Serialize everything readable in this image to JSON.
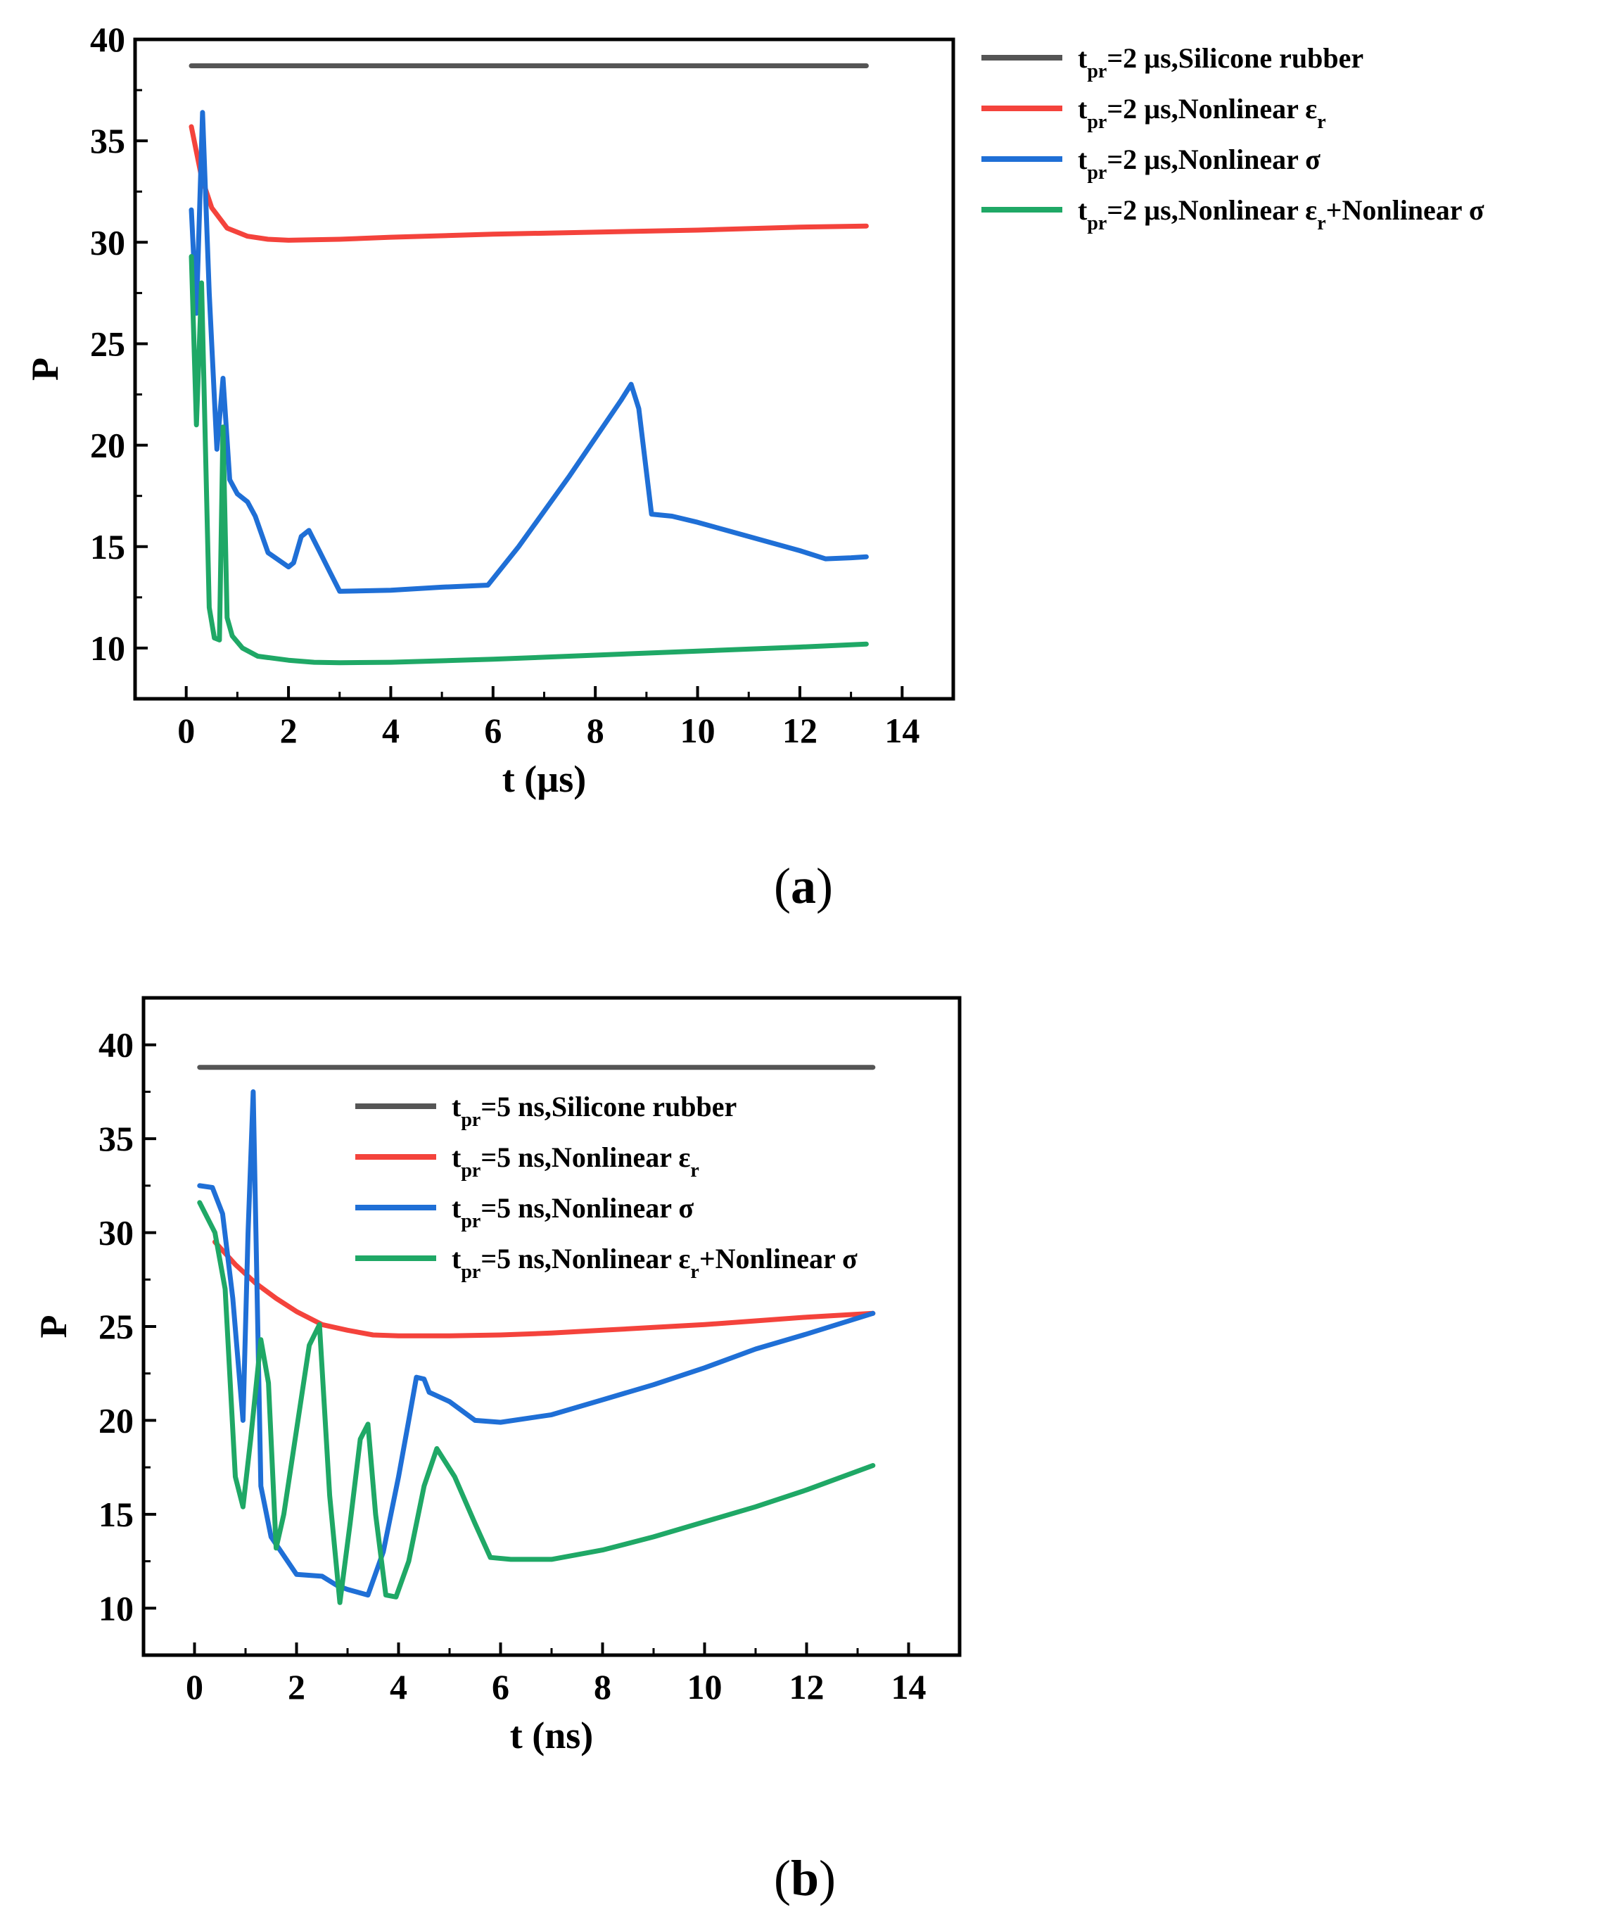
{
  "colors": {
    "black": "#555555",
    "red": "#f4433c",
    "blue": "#1f6fd6",
    "green": "#1fa866"
  },
  "chart_data": [
    {
      "id": "a",
      "panel_label": "(a)",
      "type": "line",
      "xlabel": "t (µs)",
      "ylabel": "P",
      "xlim": [
        -1,
        15
      ],
      "ylim": [
        7.5,
        40
      ],
      "xticks": [
        0,
        2,
        4,
        6,
        8,
        10,
        12,
        14
      ],
      "yticks": [
        10,
        15,
        20,
        25,
        30,
        35,
        40
      ],
      "legend_location": "outside-right",
      "series": [
        {
          "name_main": "t",
          "name_sub": "pr",
          "name_rest": "=2 µs,Silicone rubber",
          "name_extra": "",
          "name_extra_sub": "",
          "name_tail": "",
          "color": "black",
          "x": [
            0.1,
            13.3
          ],
          "y": [
            38.7,
            38.7
          ]
        },
        {
          "name_main": "t",
          "name_sub": "pr",
          "name_rest": "=2 µs,Nonlinear ε",
          "name_extra": "",
          "name_extra_sub": "r",
          "name_tail": "",
          "color": "red",
          "x": [
            0.1,
            0.3,
            0.5,
            0.8,
            1.2,
            1.6,
            2.0,
            3.0,
            4.0,
            6.0,
            8.0,
            10.0,
            12.0,
            13.3
          ],
          "y": [
            35.7,
            33.2,
            31.7,
            30.7,
            30.3,
            30.15,
            30.1,
            30.15,
            30.25,
            30.4,
            30.5,
            30.6,
            30.75,
            30.8
          ]
        },
        {
          "name_main": "t",
          "name_sub": "pr",
          "name_rest": "=2 µs,Nonlinear σ",
          "name_extra": "",
          "name_extra_sub": "",
          "name_tail": "",
          "color": "blue",
          "x": [
            0.1,
            0.2,
            0.32,
            0.45,
            0.6,
            0.72,
            0.85,
            1.0,
            1.2,
            1.35,
            1.6,
            2.0,
            2.1,
            2.25,
            2.4,
            2.6,
            2.8,
            3.0,
            4.0,
            5.0,
            5.9,
            6.5,
            7.5,
            8.5,
            8.7,
            8.85,
            9.1,
            9.5,
            10.0,
            11.0,
            12.0,
            12.5,
            13.0,
            13.3
          ],
          "y": [
            31.6,
            26.5,
            36.4,
            27.5,
            19.8,
            23.3,
            18.3,
            17.6,
            17.2,
            16.5,
            14.7,
            14.0,
            14.2,
            15.5,
            15.8,
            14.8,
            13.8,
            12.8,
            12.85,
            13.0,
            13.1,
            15.0,
            18.5,
            22.2,
            23.0,
            21.8,
            16.6,
            16.5,
            16.2,
            15.5,
            14.8,
            14.4,
            14.45,
            14.5
          ]
        },
        {
          "name_main": "t",
          "name_sub": "pr",
          "name_rest": "=2 µs,Nonlinear ε",
          "name_extra": "+Nonlinear σ",
          "name_extra_sub": "r",
          "name_tail": "",
          "color": "green",
          "x": [
            0.1,
            0.2,
            0.3,
            0.45,
            0.55,
            0.65,
            0.72,
            0.8,
            0.9,
            1.1,
            1.4,
            2.0,
            2.5,
            3.0,
            4.0,
            6.0,
            8.0,
            10.0,
            12.0,
            13.3
          ],
          "y": [
            29.3,
            21.0,
            28.0,
            12.0,
            10.5,
            10.4,
            20.9,
            11.5,
            10.6,
            10.0,
            9.6,
            9.4,
            9.3,
            9.28,
            9.3,
            9.45,
            9.65,
            9.85,
            10.05,
            10.2
          ]
        }
      ]
    },
    {
      "id": "b",
      "panel_label": "(b)",
      "type": "line",
      "xlabel": "t (ns)",
      "ylabel": "P",
      "xlim": [
        -1,
        15
      ],
      "ylim": [
        7.5,
        42.5
      ],
      "xticks": [
        0,
        2,
        4,
        6,
        8,
        10,
        12,
        14
      ],
      "yticks": [
        10,
        15,
        20,
        25,
        30,
        35,
        40
      ],
      "legend_location": "upper-center",
      "series": [
        {
          "name_main": "t",
          "name_sub": "pr",
          "name_rest": "=5 ns,Silicone rubber",
          "name_extra": "",
          "name_extra_sub": "",
          "name_tail": "",
          "color": "black",
          "x": [
            0.1,
            13.3
          ],
          "y": [
            38.8,
            38.8
          ]
        },
        {
          "name_main": "t",
          "name_sub": "pr",
          "name_rest": "=5 ns,Nonlinear ε",
          "name_extra": "",
          "name_extra_sub": "r",
          "name_tail": "",
          "color": "red",
          "x": [
            0.4,
            0.8,
            1.2,
            1.6,
            2.0,
            2.5,
            3.0,
            3.5,
            4.0,
            5.0,
            6.0,
            7.0,
            8.0,
            9.0,
            10.0,
            11.0,
            12.0,
            13.3
          ],
          "y": [
            29.5,
            28.3,
            27.3,
            26.5,
            25.8,
            25.1,
            24.8,
            24.55,
            24.5,
            24.5,
            24.55,
            24.65,
            24.8,
            24.95,
            25.1,
            25.3,
            25.5,
            25.7
          ]
        },
        {
          "name_main": "t",
          "name_sub": "pr",
          "name_rest": "=5 ns,Nonlinear σ",
          "name_extra": "",
          "name_extra_sub": "",
          "name_tail": "",
          "color": "blue",
          "x": [
            0.1,
            0.35,
            0.55,
            0.75,
            0.95,
            1.05,
            1.15,
            1.3,
            1.5,
            2.0,
            2.5,
            2.8,
            3.0,
            3.4,
            3.7,
            4.0,
            4.2,
            4.35,
            4.5,
            4.6,
            5.0,
            5.5,
            6.0,
            7.0,
            8.0,
            9.0,
            10.0,
            11.0,
            12.0,
            13.3
          ],
          "y": [
            32.5,
            32.4,
            31.0,
            26.5,
            20.0,
            30.0,
            37.5,
            16.5,
            13.8,
            11.8,
            11.7,
            11.2,
            11.0,
            10.7,
            13.0,
            17.0,
            20.0,
            22.3,
            22.2,
            21.5,
            21.0,
            20.0,
            19.9,
            20.3,
            21.1,
            21.9,
            22.8,
            23.8,
            24.6,
            25.7
          ]
        },
        {
          "name_main": "t",
          "name_sub": "pr",
          "name_rest": "=5 ns,Nonlinear ε",
          "name_extra": "+Nonlinear σ",
          "name_extra_sub": "r",
          "name_tail": "",
          "color": "green",
          "x": [
            0.1,
            0.4,
            0.6,
            0.8,
            0.95,
            1.1,
            1.3,
            1.45,
            1.6,
            1.75,
            2.0,
            2.25,
            2.45,
            2.65,
            2.85,
            3.05,
            3.25,
            3.4,
            3.55,
            3.75,
            3.95,
            4.2,
            4.5,
            4.75,
            5.1,
            5.5,
            5.8,
            6.2,
            7.0,
            8.0,
            9.0,
            10.0,
            11.0,
            12.0,
            13.3
          ],
          "y": [
            31.6,
            30.0,
            27.0,
            17.0,
            15.4,
            19.0,
            24.3,
            22.0,
            13.2,
            15.0,
            19.5,
            24.0,
            25.1,
            16.0,
            10.3,
            14.5,
            19.0,
            19.8,
            15.0,
            10.7,
            10.6,
            12.5,
            16.5,
            18.5,
            17.0,
            14.5,
            12.7,
            12.6,
            12.6,
            13.1,
            13.8,
            14.6,
            15.4,
            16.3,
            17.6
          ]
        }
      ]
    }
  ]
}
